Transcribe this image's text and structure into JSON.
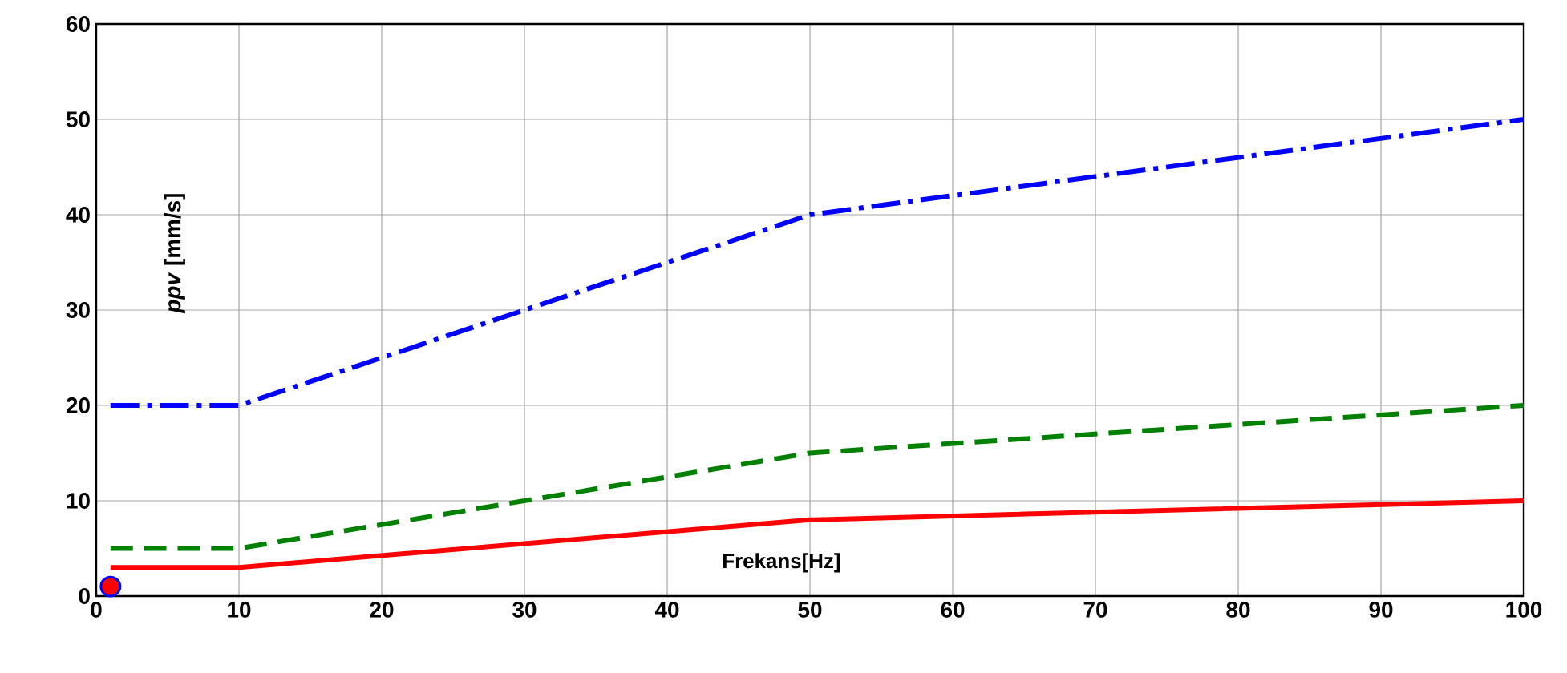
{
  "chart_data": {
    "type": "line",
    "xlabel": "Frekans[Hz]",
    "ylabel": "*ppv* [mm/s]",
    "xlim": [
      0,
      100
    ],
    "ylim": [
      0,
      60
    ],
    "xticks": [
      0,
      10,
      20,
      30,
      40,
      50,
      60,
      70,
      80,
      90,
      100
    ],
    "yticks": [
      0,
      10,
      20,
      30,
      40,
      50,
      60
    ],
    "grid": true,
    "marker": "none",
    "series": [
      {
        "color": "#0000ff",
        "line_style": "dashdot",
        "x": [
          1,
          10,
          50,
          100
        ],
        "values": [
          20,
          20,
          40,
          50
        ]
      },
      {
        "color": "#008000",
        "line_style": "dashed",
        "x": [
          1,
          10,
          50,
          100
        ],
        "values": [
          5,
          5,
          15,
          20
        ]
      },
      {
        "color": "#ff0000",
        "line_style": "solid",
        "x": [
          1,
          10,
          50,
          100
        ],
        "values": [
          3,
          3,
          8,
          10
        ]
      },
      {
        "type": "scatter",
        "marker": "circle",
        "color": "#ff0000",
        "x": [
          1
        ],
        "values": [
          1
        ]
      }
    ]
  }
}
